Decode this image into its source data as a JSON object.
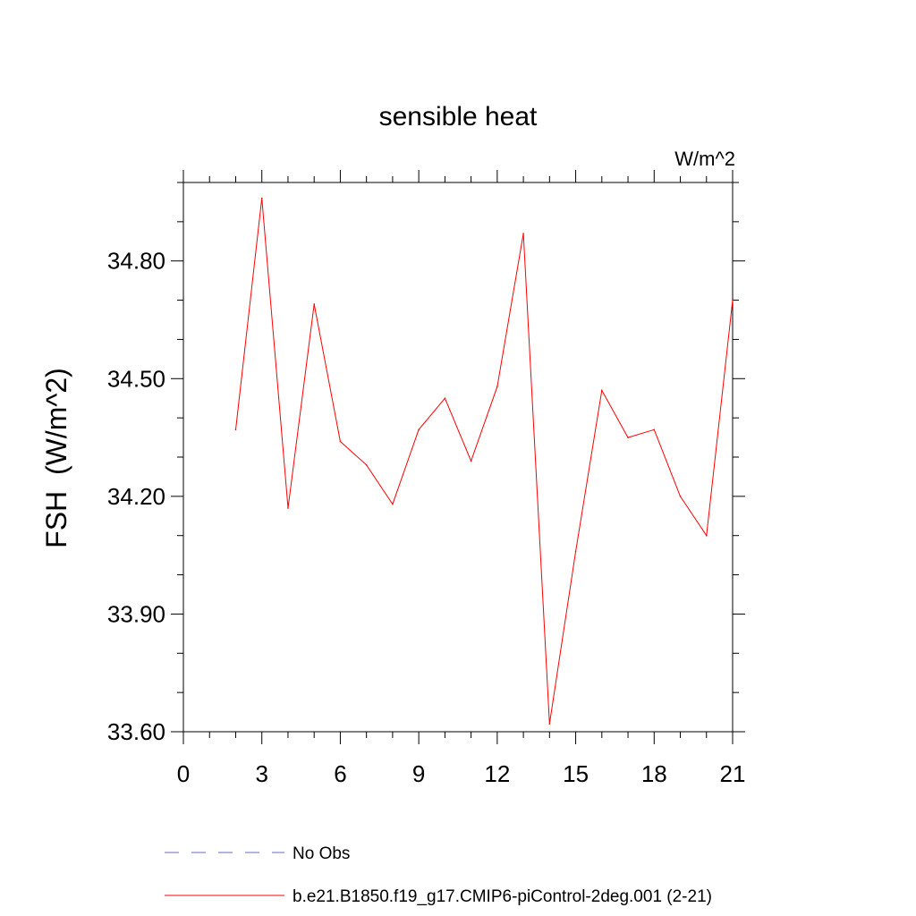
{
  "chart_data": {
    "type": "line",
    "title": "sensible heat",
    "units_label": "W/m^2",
    "xlabel": "",
    "ylabel": "FSH  (W/m^2)",
    "xlim": [
      0,
      21
    ],
    "ylim": [
      33.6,
      35.0
    ],
    "x_major_ticks": [
      0,
      3,
      6,
      9,
      12,
      15,
      18,
      21
    ],
    "x_major_tick_labels": [
      "0",
      "3",
      "6",
      "9",
      "12",
      "15",
      "18",
      "21"
    ],
    "y_major_ticks": [
      33.6,
      33.9,
      34.2,
      34.5,
      34.8
    ],
    "y_major_tick_labels": [
      "33.60",
      "33.90",
      "34.20",
      "34.50",
      "34.80"
    ],
    "grid": false,
    "legend_position": "bottom",
    "series": [
      {
        "name": "No Obs",
        "color": "#6a6ac8",
        "style": "dashed",
        "x": [],
        "y": []
      },
      {
        "name": "b.e21.B1850.f19_g17.CMIP6-piControl-2deg.001 (2-21)",
        "color": "#ff0000",
        "style": "solid",
        "x": [
          2,
          3,
          4,
          5,
          6,
          7,
          8,
          9,
          10,
          11,
          12,
          13,
          14,
          15,
          16,
          17,
          18,
          19,
          20,
          21
        ],
        "y": [
          34.37,
          34.96,
          34.17,
          34.69,
          34.34,
          34.28,
          34.18,
          34.37,
          34.45,
          34.29,
          34.48,
          34.87,
          33.62,
          34.06,
          34.47,
          34.35,
          34.37,
          34.2,
          34.1,
          34.7
        ]
      }
    ]
  }
}
